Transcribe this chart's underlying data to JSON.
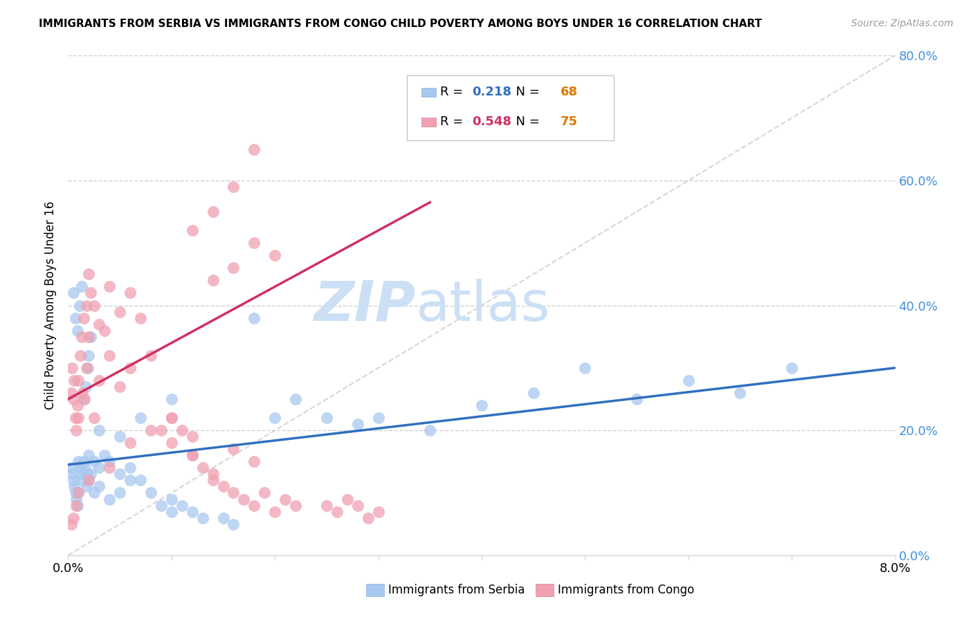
{
  "title": "IMMIGRANTS FROM SERBIA VS IMMIGRANTS FROM CONGO CHILD POVERTY AMONG BOYS UNDER 16 CORRELATION CHART",
  "source": "Source: ZipAtlas.com",
  "xlabel_serbia": "Immigrants from Serbia",
  "xlabel_congo": "Immigrants from Congo",
  "ylabel": "Child Poverty Among Boys Under 16",
  "legend_serbia_r": "0.218",
  "legend_serbia_n": "68",
  "legend_congo_r": "0.548",
  "legend_congo_n": "75",
  "xlim": [
    0.0,
    0.08
  ],
  "ylim": [
    0.0,
    0.8
  ],
  "yticks": [
    0.0,
    0.2,
    0.4,
    0.6,
    0.8
  ],
  "color_serbia": "#a8c8f0",
  "color_congo": "#f0a0b0",
  "color_trend_serbia": "#3070c0",
  "color_trend_congo": "#d03060",
  "color_right_axis": "#4090e0",
  "color_diag": "#cccccc",
  "watermark_color": "#cce0f5",
  "serbia_trend_x0": 0.0,
  "serbia_trend_y0": 0.145,
  "serbia_trend_x1": 0.08,
  "serbia_trend_y1": 0.3,
  "congo_trend_x0": 0.0,
  "congo_trend_y0": 0.25,
  "congo_trend_x1": 0.035,
  "congo_trend_y1": 0.565,
  "serbia_x": [
    0.0003,
    0.0004,
    0.0005,
    0.0006,
    0.0007,
    0.0008,
    0.0009,
    0.001,
    0.001,
    0.0012,
    0.0013,
    0.0014,
    0.0015,
    0.0016,
    0.0018,
    0.0018,
    0.002,
    0.002,
    0.0022,
    0.0025,
    0.0025,
    0.003,
    0.003,
    0.0035,
    0.004,
    0.004,
    0.005,
    0.005,
    0.006,
    0.006,
    0.007,
    0.008,
    0.009,
    0.01,
    0.01,
    0.011,
    0.012,
    0.013,
    0.015,
    0.016,
    0.018,
    0.02,
    0.022,
    0.025,
    0.028,
    0.03,
    0.035,
    0.04,
    0.045,
    0.05,
    0.055,
    0.06,
    0.065,
    0.07,
    0.0005,
    0.0007,
    0.0009,
    0.0011,
    0.0013,
    0.0015,
    0.0017,
    0.0019,
    0.002,
    0.0022,
    0.003,
    0.005,
    0.007,
    0.01
  ],
  "serbia_y": [
    0.14,
    0.13,
    0.12,
    0.11,
    0.1,
    0.09,
    0.08,
    0.15,
    0.1,
    0.14,
    0.13,
    0.12,
    0.15,
    0.14,
    0.13,
    0.11,
    0.16,
    0.12,
    0.13,
    0.15,
    0.1,
    0.14,
    0.11,
    0.16,
    0.15,
    0.09,
    0.13,
    0.1,
    0.14,
    0.12,
    0.12,
    0.1,
    0.08,
    0.07,
    0.09,
    0.08,
    0.07,
    0.06,
    0.06,
    0.05,
    0.38,
    0.22,
    0.25,
    0.22,
    0.21,
    0.22,
    0.2,
    0.24,
    0.26,
    0.3,
    0.25,
    0.28,
    0.26,
    0.3,
    0.42,
    0.38,
    0.36,
    0.4,
    0.43,
    0.25,
    0.27,
    0.3,
    0.32,
    0.35,
    0.2,
    0.19,
    0.22,
    0.25
  ],
  "congo_x": [
    0.0003,
    0.0004,
    0.0005,
    0.0006,
    0.0007,
    0.0008,
    0.0009,
    0.001,
    0.001,
    0.0012,
    0.0013,
    0.0014,
    0.0015,
    0.0016,
    0.0018,
    0.0018,
    0.002,
    0.002,
    0.0022,
    0.0025,
    0.0025,
    0.003,
    0.003,
    0.0035,
    0.004,
    0.004,
    0.005,
    0.005,
    0.006,
    0.006,
    0.007,
    0.008,
    0.009,
    0.01,
    0.01,
    0.011,
    0.012,
    0.013,
    0.014,
    0.015,
    0.016,
    0.017,
    0.018,
    0.019,
    0.02,
    0.021,
    0.022,
    0.018,
    0.016,
    0.014,
    0.012,
    0.01,
    0.008,
    0.006,
    0.004,
    0.002,
    0.001,
    0.0008,
    0.0005,
    0.0003,
    0.025,
    0.026,
    0.027,
    0.028,
    0.029,
    0.03,
    0.018,
    0.016,
    0.014,
    0.012,
    0.018,
    0.02,
    0.016,
    0.014,
    0.012
  ],
  "congo_y": [
    0.26,
    0.3,
    0.25,
    0.28,
    0.22,
    0.2,
    0.24,
    0.28,
    0.22,
    0.32,
    0.35,
    0.26,
    0.38,
    0.25,
    0.4,
    0.3,
    0.45,
    0.35,
    0.42,
    0.4,
    0.22,
    0.37,
    0.28,
    0.36,
    0.43,
    0.32,
    0.39,
    0.27,
    0.42,
    0.3,
    0.38,
    0.32,
    0.2,
    0.22,
    0.18,
    0.2,
    0.16,
    0.14,
    0.12,
    0.11,
    0.1,
    0.09,
    0.08,
    0.1,
    0.07,
    0.09,
    0.08,
    0.15,
    0.17,
    0.13,
    0.19,
    0.22,
    0.2,
    0.18,
    0.14,
    0.12,
    0.1,
    0.08,
    0.06,
    0.05,
    0.08,
    0.07,
    0.09,
    0.08,
    0.06,
    0.07,
    0.65,
    0.59,
    0.55,
    0.52,
    0.5,
    0.48,
    0.46,
    0.44,
    0.16
  ]
}
